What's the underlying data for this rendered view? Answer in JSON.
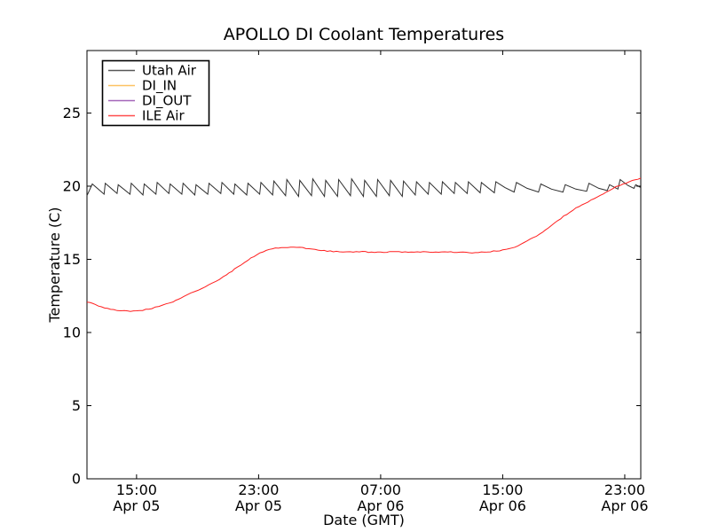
{
  "chart_data": {
    "type": "line",
    "title": "APOLLO DI Coolant Temperatures",
    "xlabel": "Date (GMT)",
    "ylabel": "Temperature (C)",
    "grid": false,
    "x_unit_note": "hours since Apr 05 00:00 GMT",
    "xlim": [
      11.75,
      48.05
    ],
    "ylim": [
      0,
      29.27
    ],
    "x_ticks": [
      {
        "value": 15,
        "time": "15:00",
        "date": "Apr 05"
      },
      {
        "value": 23,
        "time": "23:00",
        "date": "Apr 05"
      },
      {
        "value": 31,
        "time": "07:00",
        "date": "Apr 06"
      },
      {
        "value": 39,
        "time": "15:00",
        "date": "Apr 06"
      },
      {
        "value": 47,
        "time": "23:00",
        "date": "Apr 06"
      }
    ],
    "y_ticks": [
      0,
      5,
      10,
      15,
      20,
      25
    ],
    "legend": {
      "position": "upper-left",
      "entries": [
        "Utah Air",
        "DI_IN",
        "DI_OUT",
        "ILE Air"
      ]
    },
    "series": [
      {
        "name": "Utah Air",
        "color": "#2e2e2e",
        "linewidth": 1,
        "jitter": false,
        "points": [
          [
            11.75,
            19.35
          ],
          [
            12.1,
            20.15
          ],
          [
            12.87,
            19.45
          ],
          [
            12.95,
            20.2
          ],
          [
            13.72,
            19.5
          ],
          [
            13.8,
            20.1
          ],
          [
            14.57,
            19.45
          ],
          [
            14.65,
            20.2
          ],
          [
            15.42,
            19.4
          ],
          [
            15.5,
            20.15
          ],
          [
            16.27,
            19.45
          ],
          [
            16.35,
            20.25
          ],
          [
            17.12,
            19.5
          ],
          [
            17.2,
            20.15
          ],
          [
            17.97,
            19.45
          ],
          [
            18.05,
            20.2
          ],
          [
            18.82,
            19.4
          ],
          [
            18.9,
            20.1
          ],
          [
            19.67,
            19.45
          ],
          [
            19.75,
            20.2
          ],
          [
            20.52,
            19.5
          ],
          [
            20.6,
            20.25
          ],
          [
            21.37,
            19.45
          ],
          [
            21.45,
            20.15
          ],
          [
            22.22,
            19.4
          ],
          [
            22.3,
            20.2
          ],
          [
            23.07,
            19.45
          ],
          [
            23.15,
            20.25
          ],
          [
            23.92,
            19.4
          ],
          [
            24.0,
            20.35
          ],
          [
            24.77,
            19.35
          ],
          [
            24.85,
            20.45
          ],
          [
            25.62,
            19.3
          ],
          [
            25.7,
            20.4
          ],
          [
            26.47,
            19.35
          ],
          [
            26.55,
            20.5
          ],
          [
            27.32,
            19.3
          ],
          [
            27.4,
            20.4
          ],
          [
            28.17,
            19.3
          ],
          [
            28.25,
            20.45
          ],
          [
            29.02,
            19.35
          ],
          [
            29.1,
            20.5
          ],
          [
            29.87,
            19.3
          ],
          [
            29.95,
            20.4
          ],
          [
            30.72,
            19.3
          ],
          [
            30.8,
            20.45
          ],
          [
            31.57,
            19.35
          ],
          [
            31.65,
            20.4
          ],
          [
            32.42,
            19.3
          ],
          [
            32.5,
            20.35
          ],
          [
            33.27,
            19.4
          ],
          [
            33.35,
            20.3
          ],
          [
            34.12,
            19.45
          ],
          [
            34.2,
            20.25
          ],
          [
            34.97,
            19.45
          ],
          [
            35.05,
            20.3
          ],
          [
            35.82,
            19.5
          ],
          [
            35.9,
            20.25
          ],
          [
            36.67,
            19.5
          ],
          [
            36.75,
            20.3
          ],
          [
            37.52,
            19.55
          ],
          [
            37.6,
            20.25
          ],
          [
            38.45,
            19.55
          ],
          [
            38.55,
            20.3
          ],
          [
            39.15,
            19.9
          ],
          [
            39.75,
            19.6
          ],
          [
            39.9,
            20.25
          ],
          [
            40.6,
            19.85
          ],
          [
            41.35,
            19.6
          ],
          [
            41.5,
            20.15
          ],
          [
            42.2,
            19.8
          ],
          [
            42.95,
            19.6
          ],
          [
            43.1,
            20.1
          ],
          [
            43.8,
            19.8
          ],
          [
            44.5,
            19.65
          ],
          [
            44.65,
            20.2
          ],
          [
            45.3,
            19.85
          ],
          [
            45.85,
            19.7
          ],
          [
            46.0,
            20.1
          ],
          [
            46.55,
            19.8
          ],
          [
            46.7,
            20.45
          ],
          [
            47.2,
            20.05
          ],
          [
            47.6,
            19.85
          ],
          [
            47.72,
            20.1
          ],
          [
            48.05,
            19.9
          ]
        ]
      },
      {
        "name": "DI_IN",
        "color": "#fdb33c",
        "linewidth": 1,
        "jitter": false,
        "points": []
      },
      {
        "name": "DI_OUT",
        "color": "#8d3fa8",
        "linewidth": 1,
        "jitter": false,
        "points": []
      },
      {
        "name": "ILE Air",
        "color": "#ff1f1f",
        "linewidth": 1,
        "jitter": true,
        "points": [
          [
            11.75,
            12.1
          ],
          [
            12.3,
            11.9
          ],
          [
            12.9,
            11.7
          ],
          [
            13.5,
            11.55
          ],
          [
            14.2,
            11.47
          ],
          [
            14.8,
            11.45
          ],
          [
            15.4,
            11.52
          ],
          [
            16.0,
            11.65
          ],
          [
            16.7,
            11.85
          ],
          [
            17.4,
            12.1
          ],
          [
            18.1,
            12.45
          ],
          [
            18.8,
            12.8
          ],
          [
            19.5,
            13.1
          ],
          [
            20.2,
            13.5
          ],
          [
            20.9,
            13.95
          ],
          [
            21.6,
            14.45
          ],
          [
            22.3,
            14.95
          ],
          [
            22.9,
            15.35
          ],
          [
            23.5,
            15.62
          ],
          [
            24.1,
            15.75
          ],
          [
            24.7,
            15.8
          ],
          [
            25.3,
            15.82
          ],
          [
            25.9,
            15.78
          ],
          [
            26.5,
            15.7
          ],
          [
            27.1,
            15.62
          ],
          [
            27.7,
            15.55
          ],
          [
            28.3,
            15.52
          ],
          [
            29.0,
            15.5
          ],
          [
            29.8,
            15.52
          ],
          [
            30.6,
            15.48
          ],
          [
            31.4,
            15.5
          ],
          [
            32.2,
            15.52
          ],
          [
            33.0,
            15.48
          ],
          [
            33.8,
            15.52
          ],
          [
            34.6,
            15.5
          ],
          [
            35.4,
            15.52
          ],
          [
            36.2,
            15.48
          ],
          [
            37.0,
            15.45
          ],
          [
            37.8,
            15.5
          ],
          [
            38.4,
            15.55
          ],
          [
            39.0,
            15.62
          ],
          [
            39.8,
            15.85
          ],
          [
            40.6,
            16.25
          ],
          [
            41.4,
            16.7
          ],
          [
            42.2,
            17.3
          ],
          [
            43.0,
            17.95
          ],
          [
            43.8,
            18.5
          ],
          [
            44.6,
            18.95
          ],
          [
            45.4,
            19.35
          ],
          [
            46.2,
            19.85
          ],
          [
            46.9,
            20.15
          ],
          [
            47.5,
            20.4
          ],
          [
            48.05,
            20.55
          ]
        ]
      }
    ]
  }
}
